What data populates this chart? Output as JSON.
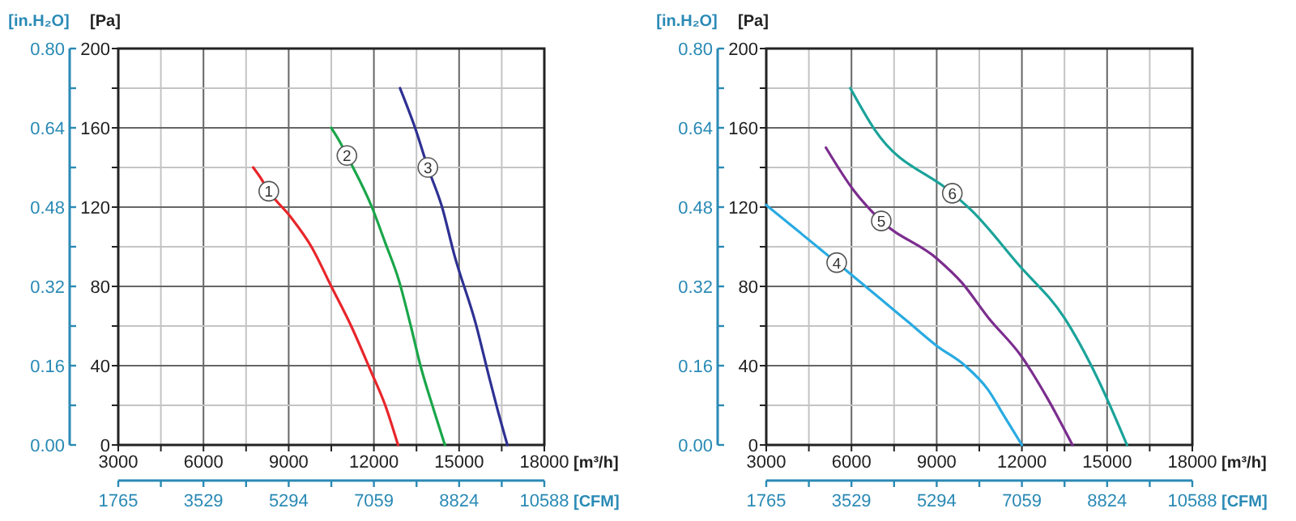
{
  "chart_data": [
    {
      "type": "line",
      "xlabel": "[m³/h]",
      "ylabel": "[Pa]",
      "y2label": "[in.H₂O]",
      "x2label": "[CFM]",
      "xlim": [
        3000,
        18000
      ],
      "ylim": [
        0,
        200
      ],
      "y2lim": [
        0,
        0.8
      ],
      "x2lim": [
        1765,
        10588
      ],
      "xticks": [
        3000,
        {
          "value": 4500,
          "label": null
        },
        6000,
        {
          "value": 7500,
          "label": null
        },
        9000,
        {
          "value": 10500,
          "label": null
        },
        12000,
        {
          "value": 13500,
          "label": null
        },
        15000,
        {
          "value": 16500,
          "label": null
        },
        18000
      ],
      "yticks": [
        0,
        {
          "value": 20,
          "label": null
        },
        40,
        {
          "value": 60,
          "label": null
        },
        80,
        {
          "value": 100,
          "label": null
        },
        120,
        {
          "value": 140,
          "label": null
        },
        160,
        {
          "value": 180,
          "label": null
        },
        200
      ],
      "y2ticks": [
        {
          "value": 0,
          "label": "0.00"
        },
        {
          "value": 0.08,
          "label": null
        },
        {
          "value": 0.16,
          "label": "0.16"
        },
        {
          "value": 0.24,
          "label": null
        },
        {
          "value": 0.32,
          "label": "0.32"
        },
        {
          "value": 0.4,
          "label": null
        },
        {
          "value": 0.48,
          "label": "0.48"
        },
        {
          "value": 0.56,
          "label": null
        },
        {
          "value": 0.64,
          "label": "0.64"
        },
        {
          "value": 0.72,
          "label": null
        },
        {
          "value": 0.8,
          "label": "0.80"
        }
      ],
      "x2ticks": [
        1765,
        {
          "value": 2647,
          "label": null
        },
        3529,
        {
          "value": 4412,
          "label": null
        },
        5294,
        {
          "value": 6177,
          "label": null
        },
        7059,
        {
          "value": 7942,
          "label": null
        },
        8824,
        {
          "value": 9706,
          "label": null
        },
        10588
      ],
      "grid": true,
      "line_style": "solid",
      "series": [
        {
          "name": "1",
          "color": "#e8262b",
          "x": [
            7750,
            8000,
            8300,
            9070,
            9800,
            10500,
            11200,
            11900,
            12400,
            12850
          ],
          "values": [
            140,
            135,
            128,
            115,
            100,
            80,
            60,
            37,
            20,
            0
          ]
        },
        {
          "name": "2",
          "color": "#1aa64a",
          "x": [
            10500,
            10800,
            11050,
            11930,
            12400,
            12880,
            13300,
            13640,
            14100,
            14500
          ],
          "values": [
            160,
            153,
            146,
            120,
            102,
            83,
            60,
            40,
            18,
            0
          ]
        },
        {
          "name": "3",
          "color": "#2e3192",
          "x": [
            12920,
            13450,
            13900,
            14400,
            14830,
            15590,
            16060,
            16350,
            16700
          ],
          "values": [
            180,
            160,
            140,
            120,
            96,
            61,
            34,
            18,
            0
          ]
        }
      ]
    },
    {
      "type": "line",
      "xlabel": "[m³/h]",
      "ylabel": "[Pa]",
      "y2label": "[in.H₂O]",
      "x2label": "[CFM]",
      "xlim": [
        3000,
        18000
      ],
      "ylim": [
        0,
        200
      ],
      "y2lim": [
        0,
        0.8
      ],
      "x2lim": [
        1765,
        10588
      ],
      "xticks": [
        3000,
        {
          "value": 4500,
          "label": null
        },
        6000,
        {
          "value": 7500,
          "label": null
        },
        9000,
        {
          "value": 10500,
          "label": null
        },
        12000,
        {
          "value": 13500,
          "label": null
        },
        15000,
        {
          "value": 16500,
          "label": null
        },
        18000
      ],
      "yticks": [
        0,
        {
          "value": 20,
          "label": null
        },
        40,
        {
          "value": 60,
          "label": null
        },
        80,
        {
          "value": 100,
          "label": null
        },
        120,
        {
          "value": 140,
          "label": null
        },
        160,
        {
          "value": 180,
          "label": null
        },
        200
      ],
      "y2ticks": [
        {
          "value": 0,
          "label": "0.00"
        },
        {
          "value": 0.08,
          "label": null
        },
        {
          "value": 0.16,
          "label": "0.16"
        },
        {
          "value": 0.24,
          "label": null
        },
        {
          "value": 0.32,
          "label": "0.32"
        },
        {
          "value": 0.4,
          "label": null
        },
        {
          "value": 0.48,
          "label": "0.48"
        },
        {
          "value": 0.56,
          "label": null
        },
        {
          "value": 0.64,
          "label": "0.64"
        },
        {
          "value": 0.72,
          "label": null
        },
        {
          "value": 0.8,
          "label": "0.80"
        }
      ],
      "x2ticks": [
        1765,
        {
          "value": 2647,
          "label": null
        },
        3529,
        {
          "value": 4412,
          "label": null
        },
        5294,
        {
          "value": 6177,
          "label": null
        },
        7059,
        {
          "value": 7942,
          "label": null
        },
        8824,
        {
          "value": 9706,
          "label": null
        },
        10588
      ],
      "grid": true,
      "line_style": "solid",
      "series": [
        {
          "name": "4",
          "color": "#29abe2",
          "x": [
            3000,
            4200,
            5480,
            7000,
            8000,
            9000,
            10000,
            10800,
            11400,
            12000
          ],
          "values": [
            121,
            107,
            92,
            74,
            62,
            50,
            40,
            28,
            14,
            0
          ]
        },
        {
          "name": "5",
          "color": "#7b2d8e",
          "x": [
            5100,
            6050,
            7050,
            9010,
            9880,
            10830,
            11970,
            12920,
            13780
          ],
          "values": [
            150,
            129,
            113,
            94,
            82,
            64,
            45,
            23,
            0
          ]
        },
        {
          "name": "6",
          "color": "#1aa39a",
          "x": [
            5960,
            6820,
            9550,
            10250,
            11880,
            13500,
            14650,
            15700
          ],
          "values": [
            180,
            159,
            127,
            118,
            91,
            64,
            34,
            0
          ]
        }
      ]
    }
  ]
}
